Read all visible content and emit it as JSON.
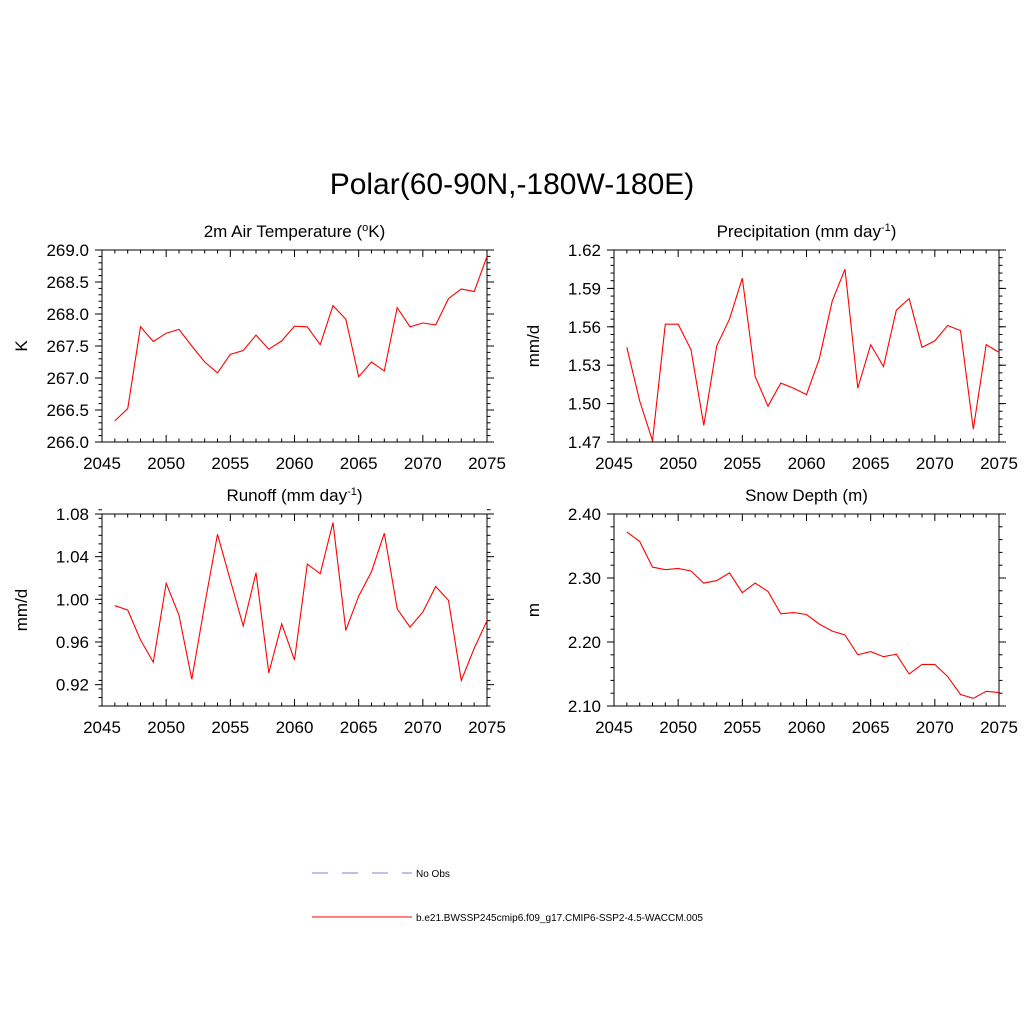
{
  "figure": {
    "title": "Polar(60-90N,-180W-180E)"
  },
  "chart_data": [
    {
      "type": "line",
      "title_main": "2m Air Temperature (",
      "title_sup": "o",
      "title_after": "K)",
      "ylabel": "K",
      "xlabel": "",
      "xlim": [
        2045,
        2075
      ],
      "ylim": [
        266.0,
        269.0
      ],
      "xticks": [
        2045,
        2050,
        2055,
        2060,
        2065,
        2070,
        2075
      ],
      "xtick_labels": [
        "2045",
        "2050",
        "2055",
        "2060",
        "2065",
        "2070",
        "2075"
      ],
      "yticks": [
        266.0,
        266.5,
        267.0,
        267.5,
        268.0,
        268.5,
        269.0
      ],
      "ytick_labels": [
        "266.0",
        "266.5",
        "267.0",
        "267.5",
        "268.0",
        "268.5",
        "269.0"
      ],
      "x": [
        2046,
        2047,
        2048,
        2049,
        2050,
        2051,
        2052,
        2053,
        2054,
        2055,
        2056,
        2057,
        2058,
        2059,
        2060,
        2061,
        2062,
        2063,
        2064,
        2065,
        2066,
        2067,
        2068,
        2069,
        2070,
        2071,
        2072,
        2073,
        2074,
        2075
      ],
      "series": [
        {
          "name": "b.e21.BWSSP245cmip6.f09_g17.CMIP6-SSP2-4.5-WACCM.005",
          "color": "#ff0000",
          "values": [
            266.33,
            266.52,
            267.8,
            267.57,
            267.7,
            267.76,
            267.5,
            267.25,
            267.08,
            267.37,
            267.43,
            267.67,
            267.45,
            267.58,
            267.81,
            267.8,
            267.52,
            268.13,
            267.92,
            267.02,
            267.25,
            267.11,
            268.1,
            267.8,
            267.86,
            267.83,
            268.24,
            268.39,
            268.35,
            268.9
          ]
        }
      ]
    },
    {
      "type": "line",
      "title_main": "Precipitation (mm day",
      "title_sup": "-1",
      "title_after": ")",
      "ylabel": "mm/d",
      "xlabel": "",
      "xlim": [
        2045,
        2075
      ],
      "ylim": [
        1.47,
        1.62
      ],
      "xticks": [
        2045,
        2050,
        2055,
        2060,
        2065,
        2070,
        2075
      ],
      "xtick_labels": [
        "2045",
        "2050",
        "2055",
        "2060",
        "2065",
        "2070",
        "2075"
      ],
      "yticks": [
        1.47,
        1.5,
        1.53,
        1.56,
        1.59,
        1.62
      ],
      "ytick_labels": [
        "1.47",
        "1.50",
        "1.53",
        "1.56",
        "1.59",
        "1.62"
      ],
      "x": [
        2046,
        2047,
        2048,
        2049,
        2050,
        2051,
        2052,
        2053,
        2054,
        2055,
        2056,
        2057,
        2058,
        2059,
        2060,
        2061,
        2062,
        2063,
        2064,
        2065,
        2066,
        2067,
        2068,
        2069,
        2070,
        2071,
        2072,
        2073,
        2074,
        2075
      ],
      "series": [
        {
          "name": "b.e21.BWSSP245cmip6.f09_g17.CMIP6-SSP2-4.5-WACCM.005",
          "color": "#ff0000",
          "values": [
            1.544,
            1.502,
            1.471,
            1.562,
            1.562,
            1.542,
            1.483,
            1.545,
            1.566,
            1.598,
            1.521,
            1.498,
            1.516,
            1.512,
            1.507,
            1.535,
            1.58,
            1.605,
            1.512,
            1.546,
            1.529,
            1.573,
            1.582,
            1.544,
            1.549,
            1.561,
            1.557,
            1.48,
            1.546,
            1.54
          ]
        }
      ]
    },
    {
      "type": "line",
      "title_main": "Runoff (mm day",
      "title_sup": "-1",
      "title_after": ")",
      "ylabel": "mm/d",
      "xlabel": "",
      "xlim": [
        2045,
        2075
      ],
      "ylim": [
        0.9,
        1.08
      ],
      "xticks": [
        2045,
        2050,
        2055,
        2060,
        2065,
        2070,
        2075
      ],
      "xtick_labels": [
        "2045",
        "2050",
        "2055",
        "2060",
        "2065",
        "2070",
        "2075"
      ],
      "yticks": [
        0.92,
        0.96,
        1.0,
        1.04,
        1.08
      ],
      "ytick_labels": [
        "0.92",
        "0.96",
        "1.00",
        "1.04",
        "1.08"
      ],
      "x": [
        2046,
        2047,
        2048,
        2049,
        2050,
        2051,
        2052,
        2053,
        2054,
        2055,
        2056,
        2057,
        2058,
        2059,
        2060,
        2061,
        2062,
        2063,
        2064,
        2065,
        2066,
        2067,
        2068,
        2069,
        2070,
        2071,
        2072,
        2073,
        2074,
        2075
      ],
      "series": [
        {
          "name": "b.e21.BWSSP245cmip6.f09_g17.CMIP6-SSP2-4.5-WACCM.005",
          "color": "#ff0000",
          "values": [
            0.994,
            0.99,
            0.962,
            0.941,
            1.015,
            0.985,
            0.925,
            0.995,
            1.061,
            1.018,
            0.975,
            1.025,
            0.931,
            0.977,
            0.943,
            1.033,
            1.024,
            1.072,
            0.971,
            1.003,
            1.026,
            1.062,
            0.991,
            0.974,
            0.988,
            1.012,
            0.999,
            0.924,
            0.954,
            0.98
          ]
        }
      ]
    },
    {
      "type": "line",
      "title_main": "Snow Depth (m)",
      "title_sup": "",
      "title_after": "",
      "ylabel": "m",
      "xlabel": "",
      "xlim": [
        2045,
        2075
      ],
      "ylim": [
        2.1,
        2.4
      ],
      "xticks": [
        2045,
        2050,
        2055,
        2060,
        2065,
        2070,
        2075
      ],
      "xtick_labels": [
        "2045",
        "2050",
        "2055",
        "2060",
        "2065",
        "2070",
        "2075"
      ],
      "yticks": [
        2.1,
        2.2,
        2.3,
        2.4
      ],
      "ytick_labels": [
        "2.10",
        "2.20",
        "2.30",
        "2.40"
      ],
      "x": [
        2046,
        2047,
        2048,
        2049,
        2050,
        2051,
        2052,
        2053,
        2054,
        2055,
        2056,
        2057,
        2058,
        2059,
        2060,
        2061,
        2062,
        2063,
        2064,
        2065,
        2066,
        2067,
        2068,
        2069,
        2070,
        2071,
        2072,
        2073,
        2074,
        2075
      ],
      "series": [
        {
          "name": "b.e21.BWSSP245cmip6.f09_g17.CMIP6-SSP2-4.5-WACCM.005",
          "color": "#ff0000",
          "values": [
            2.372,
            2.357,
            2.317,
            2.313,
            2.315,
            2.311,
            2.292,
            2.296,
            2.308,
            2.277,
            2.292,
            2.279,
            2.244,
            2.246,
            2.243,
            2.228,
            2.217,
            2.211,
            2.18,
            2.185,
            2.177,
            2.181,
            2.15,
            2.165,
            2.165,
            2.146,
            2.118,
            2.112,
            2.123,
            2.121
          ]
        }
      ]
    }
  ],
  "legend": {
    "items": [
      {
        "label": "No Obs",
        "color": "#9999dd",
        "style": "dashed"
      },
      {
        "label": "b.e21.BWSSP245cmip6.f09_g17.CMIP6-SSP2-4.5-WACCM.005",
        "color": "#ff0000",
        "style": "solid"
      }
    ]
  }
}
